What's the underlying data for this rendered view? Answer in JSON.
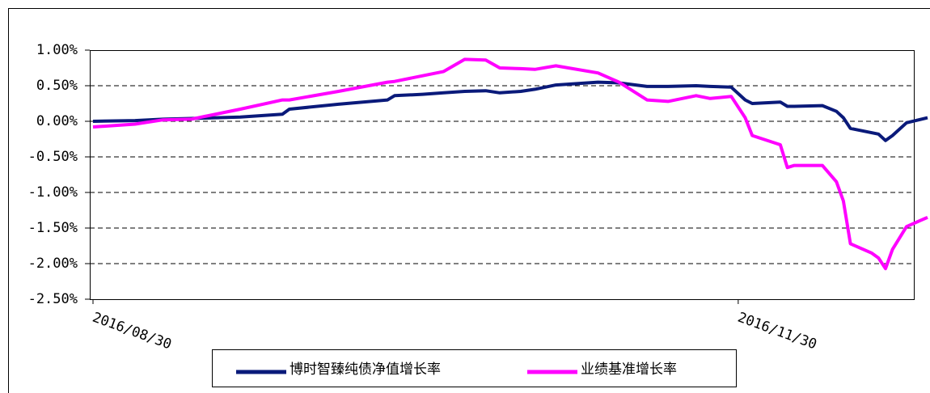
{
  "chart_data": {
    "type": "line",
    "x": [
      "2016/08/30",
      "2016/09/05",
      "2016/09/09",
      "2016/09/13",
      "2016/09/20",
      "2016/09/26",
      "2016/09/27",
      "2016/10/04",
      "2016/10/11",
      "2016/10/12",
      "2016/10/16",
      "2016/10/19",
      "2016/10/22",
      "2016/10/25",
      "2016/10/27",
      "2016/10/30",
      "2016/11/01",
      "2016/11/04",
      "2016/11/10",
      "2016/11/13",
      "2016/11/17",
      "2016/11/20",
      "2016/11/24",
      "2016/11/26",
      "2016/11/29",
      "2016/12/01",
      "2016/12/02",
      "2016/12/06",
      "2016/12/07",
      "2016/12/08",
      "2016/12/12",
      "2016/12/14",
      "2016/12/15",
      "2016/12/16",
      "2016/12/19",
      "2016/12/20",
      "2016/12/21",
      "2016/12/22",
      "2016/12/24",
      "2016/12/27"
    ],
    "series": [
      {
        "name": "博时智臻纯债净值增长率",
        "color": "#0a1a7a",
        "values": [
          0.0,
          0.01,
          0.03,
          0.04,
          0.06,
          0.1,
          0.17,
          0.24,
          0.3,
          0.36,
          0.38,
          0.4,
          0.42,
          0.43,
          0.4,
          0.42,
          0.45,
          0.51,
          0.55,
          0.54,
          0.49,
          0.49,
          0.5,
          0.49,
          0.48,
          0.3,
          0.25,
          0.27,
          0.21,
          0.21,
          0.22,
          0.14,
          0.05,
          -0.1,
          -0.16,
          -0.18,
          -0.27,
          -0.2,
          -0.02,
          0.05
        ]
      },
      {
        "name": "业绩基准增长率",
        "color": "#ff00ff",
        "values": [
          -0.08,
          -0.04,
          0.02,
          0.03,
          0.17,
          0.3,
          0.3,
          0.42,
          0.55,
          0.56,
          0.64,
          0.7,
          0.87,
          0.86,
          0.75,
          0.74,
          0.73,
          0.78,
          0.68,
          0.55,
          0.3,
          0.28,
          0.36,
          0.32,
          0.35,
          0.05,
          -0.2,
          -0.33,
          -0.65,
          -0.62,
          -0.62,
          -0.85,
          -1.12,
          -1.72,
          -1.85,
          -1.92,
          -2.07,
          -1.8,
          -1.48,
          -1.35
        ]
      }
    ],
    "xlim": [
      "2016/08/30",
      "2016/12/27"
    ],
    "xticks": [
      "2016/08/30",
      "2016/11/30"
    ],
    "ylim": [
      -2.5,
      1.0
    ],
    "yticks": [
      {
        "value": 1.0,
        "label": "1.00%"
      },
      {
        "value": 0.5,
        "label": "0.50%"
      },
      {
        "value": 0,
        "label": "0.00%"
      },
      {
        "value": -0.5,
        "label": "-0.50%"
      },
      {
        "value": -1.0,
        "label": "-1.00%"
      },
      {
        "value": -1.5,
        "label": "-1.50%"
      },
      {
        "value": -2.0,
        "label": "-2.00%"
      },
      {
        "value": -2.5,
        "label": "-2.50%"
      }
    ],
    "grid": true
  }
}
